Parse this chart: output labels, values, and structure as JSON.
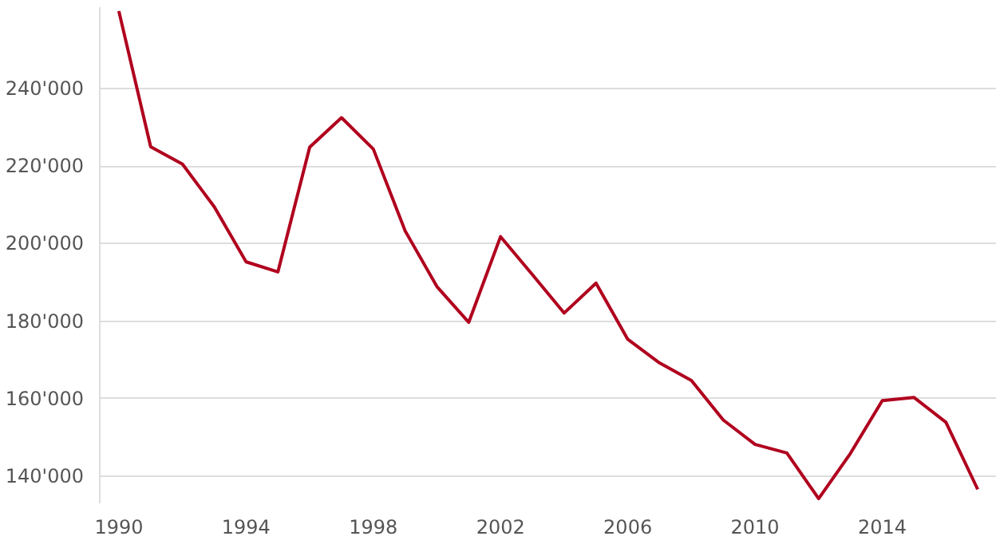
{
  "chart_data": {
    "type": "line",
    "x": [
      1990,
      1991,
      1992,
      1993,
      1994,
      1995,
      1996,
      1997,
      1998,
      1999,
      2000,
      2001,
      2002,
      2003,
      2004,
      2005,
      2006,
      2007,
      2008,
      2009,
      2010,
      2011,
      2012,
      2013,
      2014,
      2015,
      2016,
      2017
    ],
    "series": [
      {
        "color": "#b0001e",
        "values": [
          260000,
          225000,
          220500,
          209500,
          195300,
          192700,
          224900,
          232500,
          224400,
          203300,
          188900,
          179700,
          201800,
          192000,
          182100,
          189800,
          175300,
          169200,
          164700,
          154500,
          148200,
          146000,
          134200,
          145900,
          159500,
          160300,
          153900,
          136600
        ]
      }
    ],
    "xlim": [
      1989.4,
      2017.6
    ],
    "ylim": [
      133000,
      261000
    ],
    "xticks": [
      1990,
      1994,
      1998,
      2002,
      2006,
      2010,
      2014
    ],
    "yticks": [
      {
        "value": 140000,
        "label": "140'000"
      },
      {
        "value": 160000,
        "label": "160'000"
      },
      {
        "value": 180000,
        "label": "180'000"
      },
      {
        "value": 200000,
        "label": "200'000"
      },
      {
        "value": 220000,
        "label": "220'000"
      },
      {
        "value": 240000,
        "label": "240'000"
      }
    ],
    "grid": "y",
    "marker": "none",
    "line_style": "solid"
  }
}
